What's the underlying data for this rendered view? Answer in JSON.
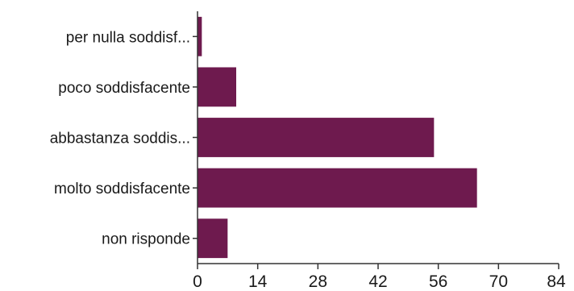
{
  "chart_data": {
    "type": "bar",
    "orientation": "horizontal",
    "categories": [
      "per nulla soddisf...",
      "poco soddisfacente",
      "abbastanza soddis...",
      "molto soddisfacente",
      "non risponde"
    ],
    "values": [
      1,
      9,
      55,
      65,
      7
    ],
    "xlim": [
      0,
      84
    ],
    "xticks": [
      0,
      14,
      28,
      42,
      56,
      70,
      84
    ],
    "tick_labels": [
      "0",
      "14",
      "28",
      "42",
      "56",
      "70",
      "84"
    ],
    "bar_color": "#6e1a4e",
    "grid": false,
    "legend": "none"
  }
}
